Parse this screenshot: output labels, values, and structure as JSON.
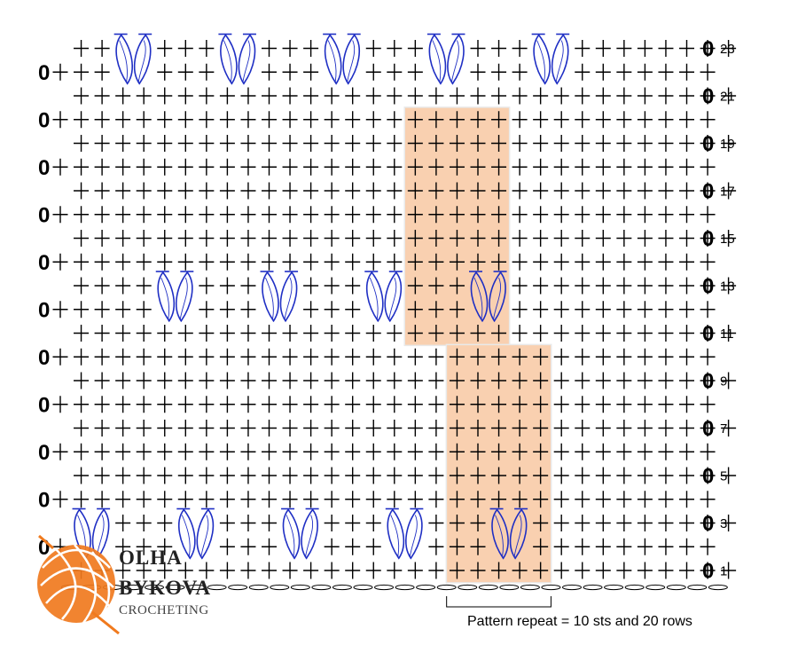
{
  "chart": {
    "grid_columns": 32,
    "row_count": 23,
    "turning_chain_symbol": "0",
    "row_labels": [
      "23",
      "21",
      "19",
      "17",
      "15",
      "13",
      "11",
      "9",
      "7",
      "5",
      "3",
      "1"
    ],
    "cluster_rows": [
      {
        "rows": [
          22,
          23
        ],
        "cluster_columns": [
          3,
          8,
          13,
          18,
          23
        ]
      },
      {
        "rows": [
          12,
          13
        ],
        "cluster_columns": [
          5,
          10,
          15,
          20
        ]
      },
      {
        "rows": [
          2,
          3
        ],
        "cluster_columns": [
          1,
          6,
          11,
          16,
          21
        ]
      }
    ],
    "repeat_highlights": [
      {
        "rows": [
          11,
          20
        ],
        "columns": [
          17,
          21
        ]
      },
      {
        "rows": [
          1,
          10
        ],
        "columns": [
          19,
          23
        ]
      }
    ],
    "colors": {
      "cluster": "#1f2fc4",
      "highlight": "#f9d0b0",
      "symbol": "#000000"
    }
  },
  "caption": "Pattern repeat = 10 sts and 20 rows",
  "logo": {
    "line1": "OLHA",
    "line2": "BYKOVA",
    "line3": "CROCHETING",
    "color": "#f07a1e"
  }
}
